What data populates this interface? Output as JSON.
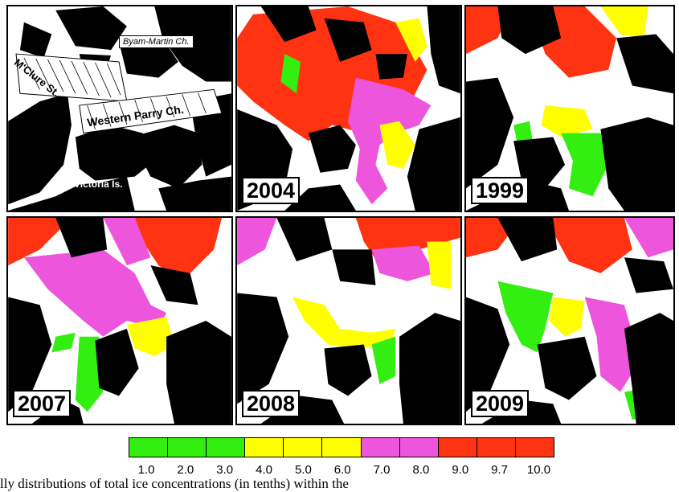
{
  "colors": {
    "land": "#000000",
    "open_water": "#ffffff",
    "green": "#33ee11",
    "yellow": "#ffff00",
    "magenta": "#ee55dd",
    "red": "#ff3311"
  },
  "base_map": {
    "labels": {
      "mcclure": "M'Clure St.",
      "western_parry": "Western Parry Ch.",
      "victoria": "Victoria Is.",
      "byam_martin": "Byam-Martin Ch."
    }
  },
  "panels": [
    {
      "year": "2004"
    },
    {
      "year": "1999"
    },
    {
      "year": "2007"
    },
    {
      "year": "2008"
    },
    {
      "year": "2009"
    }
  ],
  "legend": {
    "swatch_colors": [
      "#33ee11",
      "#33ee11",
      "#33ee11",
      "#ffff00",
      "#ffff00",
      "#ffff00",
      "#ee55dd",
      "#ee55dd",
      "#ff3311",
      "#ff3311",
      "#ff3311"
    ],
    "ticks": [
      "1.0",
      "2.0",
      "3.0",
      "4.0",
      "5.0",
      "6.0",
      "7.0",
      "8.0",
      "9.0",
      "9.7",
      "10.0"
    ]
  },
  "caption": "lly distributions of total ice concentrations (in tenths) within the"
}
